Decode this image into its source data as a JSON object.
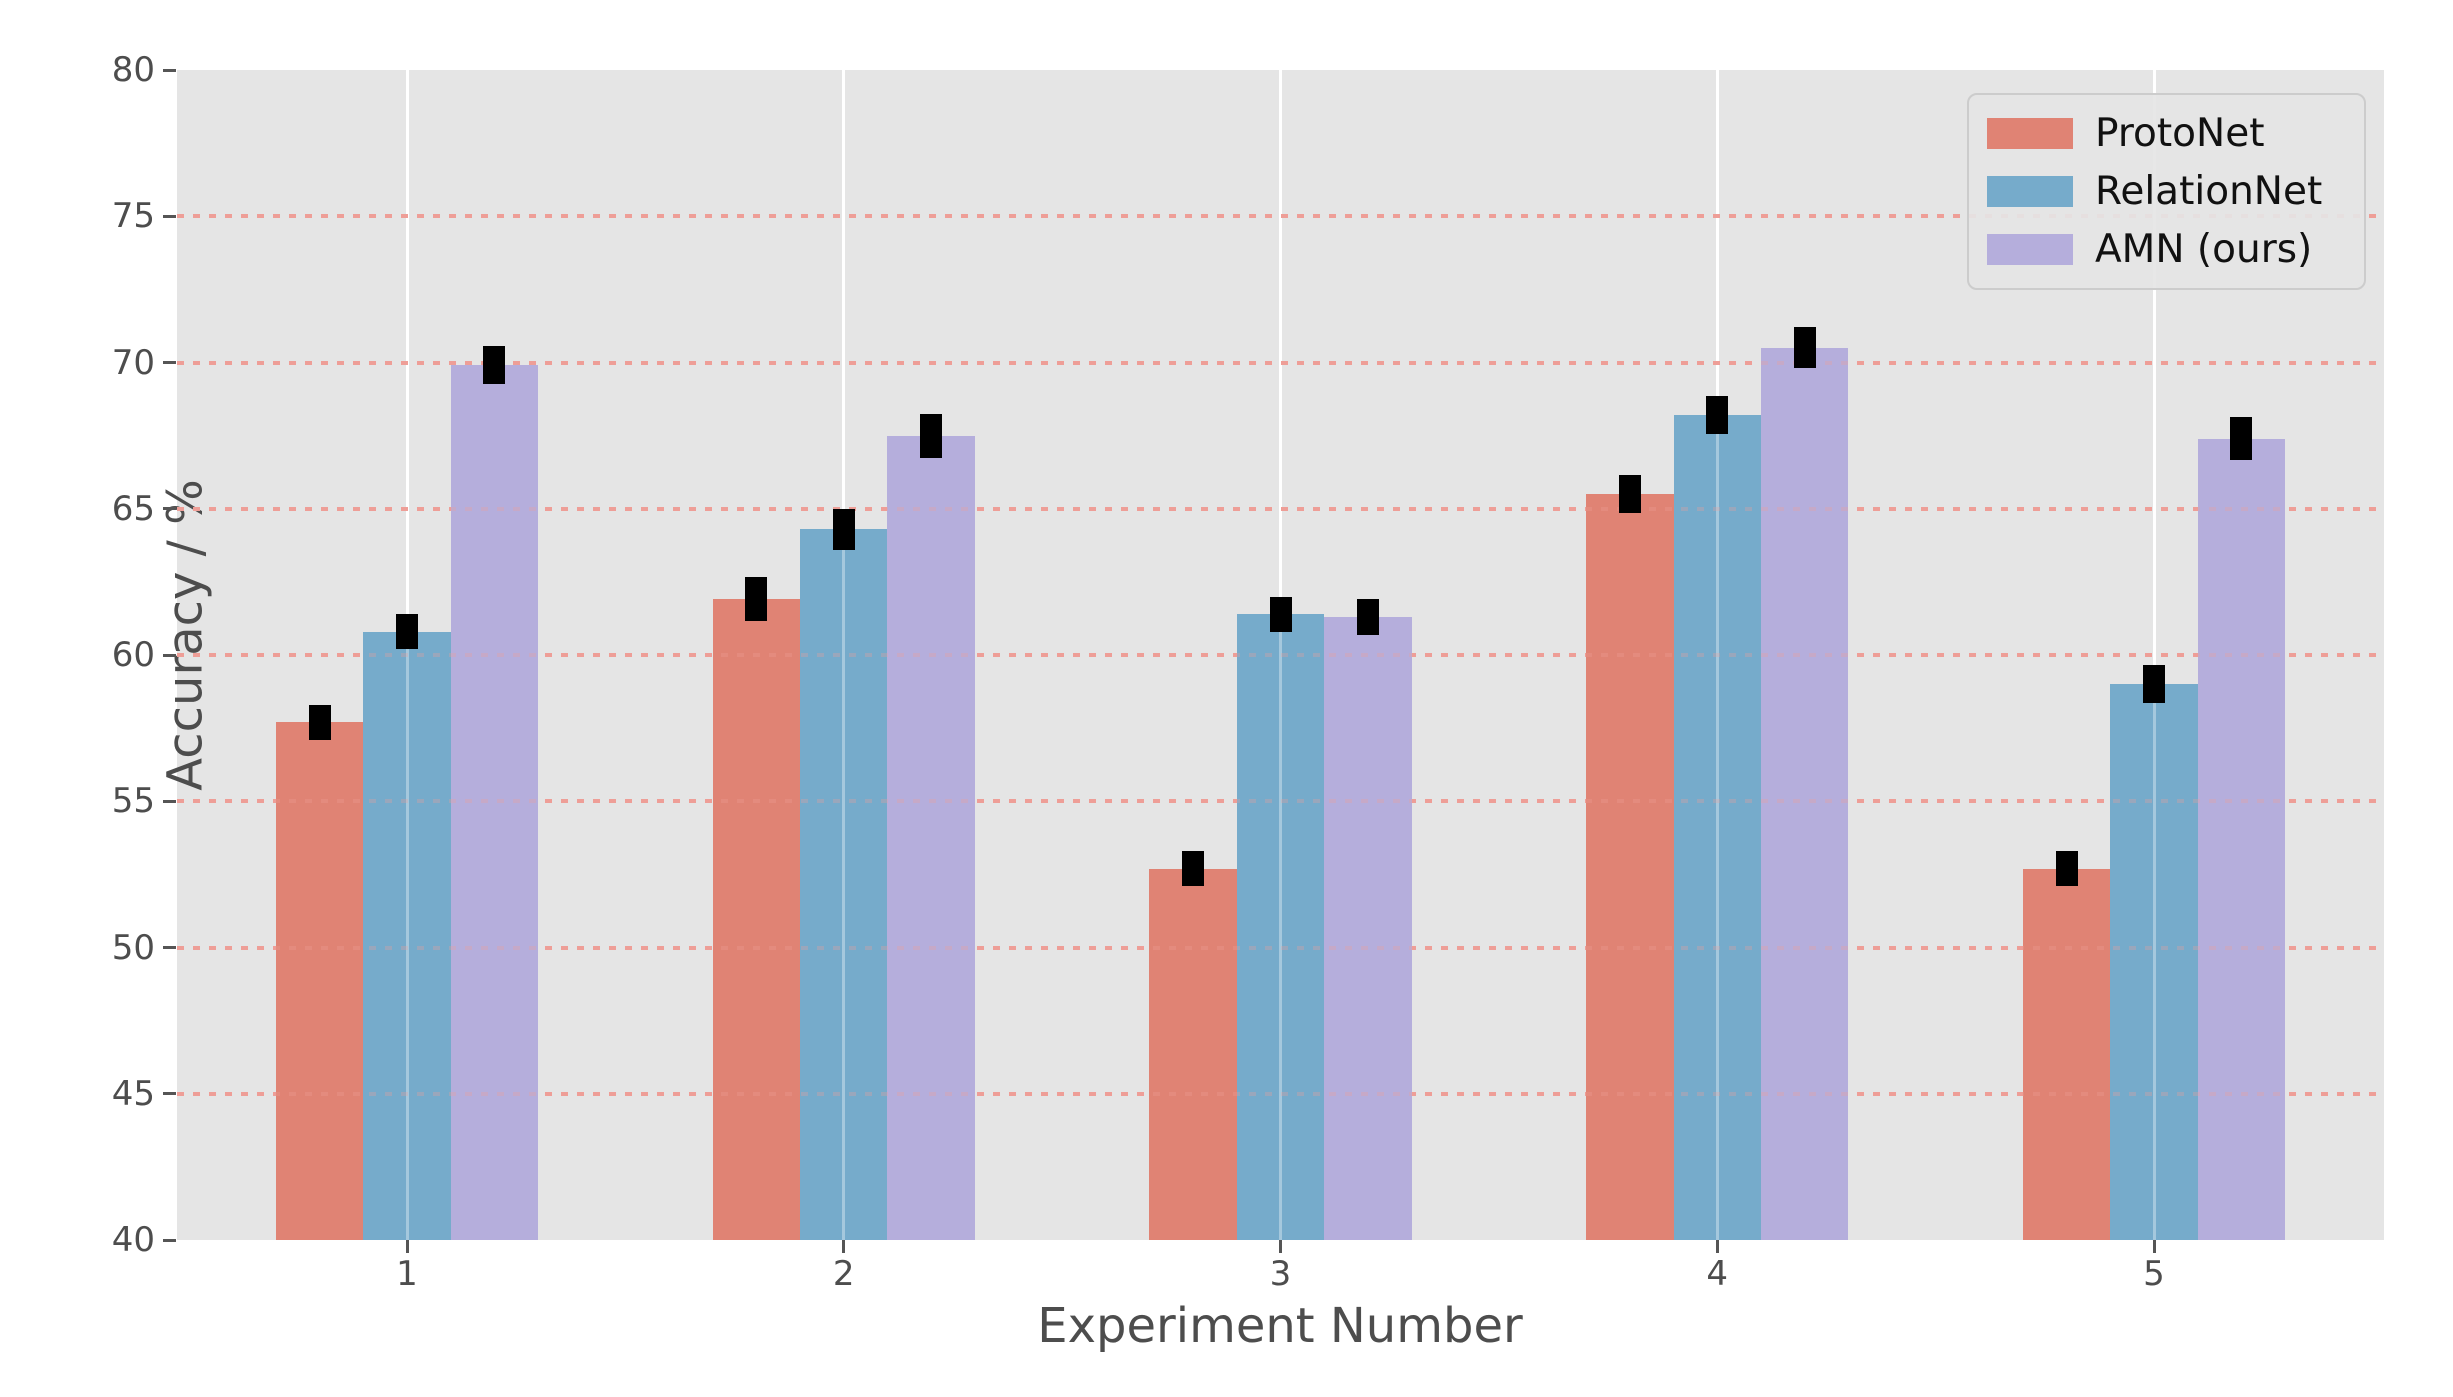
{
  "figure": {
    "background": "#ffffff",
    "plot_background": "#e5e5e5"
  },
  "chart_data": {
    "type": "bar",
    "title": "",
    "xlabel": "Experiment Number",
    "ylabel": "Accuracy / %",
    "categories": [
      "1",
      "2",
      "3",
      "4",
      "5"
    ],
    "series": [
      {
        "name": "ProtoNet",
        "color": "#e08374",
        "values": [
          57.7,
          61.9,
          52.7,
          65.5,
          52.7
        ],
        "errors": [
          0.6,
          0.75,
          0.6,
          0.65,
          0.6
        ]
      },
      {
        "name": "RelationNet",
        "color": "#76abcb",
        "values": [
          60.8,
          64.3,
          61.4,
          68.2,
          59.0
        ],
        "errors": [
          0.6,
          0.7,
          0.6,
          0.65,
          0.65
        ]
      },
      {
        "name": "AMN (ours)",
        "color": "#b5aedc",
        "values": [
          69.9,
          67.5,
          61.3,
          70.5,
          67.4
        ],
        "errors": [
          0.65,
          0.75,
          0.6,
          0.7,
          0.75
        ]
      }
    ],
    "error_bar_color": "#000000",
    "ylim": [
      40,
      80
    ],
    "yticks": [
      40,
      45,
      50,
      55,
      60,
      65,
      70,
      75,
      80
    ],
    "grid": {
      "horizontal": {
        "color": "#ee9e97",
        "style": "dotted",
        "at": [
          45,
          50,
          55,
          60,
          65,
          70,
          75
        ]
      },
      "vertical": {
        "color": "#ffffff",
        "style": "solid",
        "at_categories": true
      }
    },
    "legend": {
      "position": "upper right",
      "entries": [
        "ProtoNet",
        "RelationNet",
        "AMN (ours)"
      ]
    },
    "tick_color": "#4d4d4d",
    "label_color": "#4d4d4d"
  }
}
